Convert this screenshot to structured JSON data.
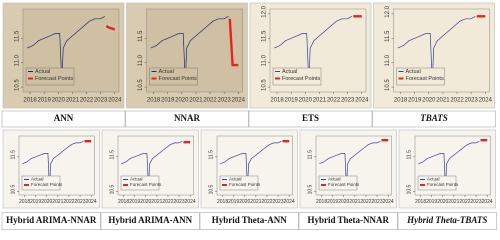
{
  "chart_data": [
    {
      "type": "line",
      "title": "ANN",
      "background": "#d9cbb0",
      "plot_background": "#cfc0a3",
      "title_italic": false,
      "xlim": [
        2017.5,
        2024.3
      ],
      "xticks": [
        2018,
        2019,
        2020,
        2021,
        2022,
        2023,
        2024
      ],
      "ylim": [
        10.4,
        12.1
      ],
      "yticks": [
        10.5,
        {
          "value": 11,
          "label": "11.0"
        },
        11.5
      ],
      "series": [
        {
          "name": "Actual",
          "color": "#1f2a78",
          "x": [
            2017.8,
            2018.2,
            2018.6,
            2019,
            2019.4,
            2019.8,
            2020.1,
            2020.25,
            2020.35,
            2020.6,
            2021,
            2021.4,
            2021.8,
            2022.2,
            2022.6,
            2023,
            2023.3
          ],
          "values": [
            11.3,
            11.35,
            11.45,
            11.5,
            11.55,
            11.6,
            11.6,
            10.6,
            11.3,
            11.45,
            11.55,
            11.65,
            11.75,
            11.85,
            11.9,
            11.9,
            11.95
          ]
        },
        {
          "name": "Forecast Points",
          "color": "#e8231e",
          "x": [
            2023.4,
            2023.6,
            2023.8,
            2024
          ],
          "values": [
            11.75,
            11.72,
            11.7,
            11.68
          ]
        }
      ]
    },
    {
      "type": "line",
      "title": "NNAR",
      "background": "#d9cbb0",
      "plot_background": "#cfc0a3",
      "title_italic": false,
      "xlim": [
        2017.5,
        2024.3
      ],
      "xticks": [
        2018,
        2019,
        2020,
        2021,
        2022,
        2023,
        2024
      ],
      "ylim": [
        10.4,
        12.1
      ],
      "yticks": [
        10.5,
        {
          "value": 11,
          "label": "11.0"
        },
        11.5
      ],
      "series": [
        {
          "name": "Actual",
          "color": "#1f2a78",
          "x": [
            2017.8,
            2018.2,
            2018.6,
            2019,
            2019.4,
            2019.8,
            2020.1,
            2020.25,
            2020.35,
            2020.6,
            2021,
            2021.4,
            2021.8,
            2022.2,
            2022.6,
            2023,
            2023.3
          ],
          "values": [
            11.3,
            11.35,
            11.45,
            11.5,
            11.55,
            11.6,
            11.6,
            10.6,
            11.3,
            11.45,
            11.55,
            11.65,
            11.75,
            11.85,
            11.9,
            11.9,
            11.95
          ]
        },
        {
          "name": "Forecast Points",
          "color": "#e8231e",
          "x": [
            2023.4,
            2023.6,
            2023.8,
            2024
          ],
          "values": [
            11.9,
            10.95,
            10.95,
            10.95
          ]
        }
      ]
    },
    {
      "type": "line",
      "title": "ETS",
      "background": "#f2ead8",
      "plot_background": "#f2ead8",
      "title_italic": false,
      "xlim": [
        2017.5,
        2024.3
      ],
      "xticks": [
        2018,
        2019,
        2020,
        2021,
        2022,
        2023,
        2024
      ],
      "ylim": [
        10.4,
        12.1
      ],
      "yticks": [
        10.5,
        {
          "value": 11,
          "label": "11.0"
        },
        11.5,
        {
          "value": 12,
          "label": "12.0"
        }
      ],
      "series": [
        {
          "name": "Actual",
          "color": "#3a3f9a",
          "x": [
            2017.8,
            2018.2,
            2018.6,
            2019,
            2019.4,
            2019.8,
            2020.1,
            2020.25,
            2020.35,
            2020.6,
            2021,
            2021.4,
            2021.8,
            2022.2,
            2022.6,
            2023,
            2023.3
          ],
          "values": [
            11.3,
            11.35,
            11.45,
            11.5,
            11.55,
            11.6,
            11.6,
            10.6,
            11.3,
            11.45,
            11.55,
            11.65,
            11.75,
            11.85,
            11.9,
            11.9,
            11.95
          ]
        },
        {
          "name": "Forecast Points",
          "color": "#e8231e",
          "x": [
            2023.4,
            2023.6,
            2023.8,
            2024
          ],
          "values": [
            11.95,
            11.95,
            11.95,
            11.95
          ]
        }
      ]
    },
    {
      "type": "line",
      "title": "TBATS",
      "background": "#f2ead8",
      "plot_background": "#f2ead8",
      "title_italic": true,
      "xlim": [
        2017.5,
        2024.3
      ],
      "xticks": [
        2018,
        2019,
        2020,
        2021,
        2022,
        2023,
        2024
      ],
      "ylim": [
        10.4,
        12.1
      ],
      "yticks": [
        10.5,
        {
          "value": 11,
          "label": "11.0"
        },
        11.5,
        {
          "value": 12,
          "label": "12.0"
        }
      ],
      "series": [
        {
          "name": "Actual",
          "color": "#3a3f9a",
          "x": [
            2017.8,
            2018.2,
            2018.6,
            2019,
            2019.4,
            2019.8,
            2020.1,
            2020.25,
            2020.35,
            2020.6,
            2021,
            2021.4,
            2021.8,
            2022.2,
            2022.6,
            2023,
            2023.3
          ],
          "values": [
            11.3,
            11.35,
            11.45,
            11.5,
            11.55,
            11.6,
            11.6,
            10.6,
            11.3,
            11.45,
            11.55,
            11.65,
            11.75,
            11.85,
            11.9,
            11.9,
            11.95
          ]
        },
        {
          "name": "Forecast Points",
          "color": "#e8231e",
          "x": [
            2023.4,
            2023.6,
            2023.8,
            2024
          ],
          "values": [
            11.95,
            11.95,
            11.95,
            11.95
          ]
        }
      ]
    },
    {
      "type": "line",
      "title": "Hybrid ARIMA-NNAR",
      "background": "#f7f4ee",
      "plot_background": "#f7f4ee",
      "title_italic": false,
      "xlim": [
        2017.5,
        2024.3
      ],
      "xticks": [
        2018,
        2019,
        2020,
        2021,
        2022,
        2023,
        2024
      ],
      "ylim": [
        10.4,
        12.1
      ],
      "yticks": [
        10.5,
        11.5
      ],
      "series": [
        {
          "name": "Actual",
          "color": "#3a3f9a",
          "x": [
            2017.8,
            2018.2,
            2018.6,
            2019,
            2019.4,
            2019.8,
            2020.1,
            2020.25,
            2020.35,
            2020.6,
            2021,
            2021.4,
            2021.8,
            2022.2,
            2022.6,
            2023,
            2023.3
          ],
          "values": [
            11.3,
            11.35,
            11.45,
            11.5,
            11.55,
            11.6,
            11.6,
            10.6,
            11.3,
            11.45,
            11.55,
            11.65,
            11.75,
            11.85,
            11.9,
            11.9,
            11.95
          ]
        },
        {
          "name": "Forecast Points",
          "color": "#e8231e",
          "x": [
            2023.4,
            2023.6,
            2023.8,
            2024
          ],
          "values": [
            11.95,
            11.95,
            11.95,
            11.95
          ]
        }
      ]
    },
    {
      "type": "line",
      "title": "Hybrid ARIMA-ANN",
      "background": "#f7f4ee",
      "plot_background": "#f7f4ee",
      "title_italic": false,
      "xlim": [
        2017.5,
        2024.3
      ],
      "xticks": [
        2018,
        2019,
        2020,
        2021,
        2022,
        2023,
        2024
      ],
      "ylim": [
        10.4,
        12.1
      ],
      "yticks": [
        10.5,
        11.5
      ],
      "series": [
        {
          "name": "Actual",
          "color": "#3a3f9a",
          "x": [
            2017.8,
            2018.2,
            2018.6,
            2019,
            2019.4,
            2019.8,
            2020.1,
            2020.25,
            2020.35,
            2020.6,
            2021,
            2021.4,
            2021.8,
            2022.2,
            2022.6,
            2023,
            2023.3
          ],
          "values": [
            11.3,
            11.35,
            11.45,
            11.5,
            11.55,
            11.6,
            11.6,
            10.6,
            11.3,
            11.45,
            11.55,
            11.65,
            11.75,
            11.85,
            11.9,
            11.9,
            11.95
          ]
        },
        {
          "name": "Forecast Points",
          "color": "#e8231e",
          "x": [
            2023.4,
            2023.6,
            2023.8,
            2024
          ],
          "values": [
            11.92,
            11.92,
            11.92,
            11.92
          ]
        }
      ]
    },
    {
      "type": "line",
      "title": "Hybrid Theta-ANN",
      "background": "#f7f4ee",
      "plot_background": "#f7f4ee",
      "title_italic": false,
      "xlim": [
        2017.5,
        2024.3
      ],
      "xticks": [
        2018,
        2019,
        2020,
        2021,
        2022,
        2023,
        2024
      ],
      "ylim": [
        10.4,
        12.1
      ],
      "yticks": [
        10.5,
        11.5
      ],
      "series": [
        {
          "name": "Actual",
          "color": "#3a3f9a",
          "x": [
            2017.8,
            2018.2,
            2018.6,
            2019,
            2019.4,
            2019.8,
            2020.1,
            2020.25,
            2020.35,
            2020.6,
            2021,
            2021.4,
            2021.8,
            2022.2,
            2022.6,
            2023,
            2023.3
          ],
          "values": [
            11.3,
            11.35,
            11.45,
            11.5,
            11.55,
            11.6,
            11.6,
            10.6,
            11.3,
            11.45,
            11.55,
            11.65,
            11.75,
            11.85,
            11.9,
            11.9,
            11.95
          ]
        },
        {
          "name": "Forecast Points",
          "color": "#e8231e",
          "x": [
            2023.4,
            2023.6,
            2023.8,
            2024
          ],
          "values": [
            11.95,
            11.95,
            11.95,
            11.95
          ]
        }
      ]
    },
    {
      "type": "line",
      "title": "Hybrid Theta-NNAR",
      "background": "#f7f4ee",
      "plot_background": "#f7f4ee",
      "title_italic": false,
      "xlim": [
        2017.5,
        2024.3
      ],
      "xticks": [
        2018,
        2019,
        2020,
        2021,
        2022,
        2023,
        2024
      ],
      "ylim": [
        10.4,
        12.1
      ],
      "yticks": [
        10.5,
        11.5
      ],
      "series": [
        {
          "name": "Actual",
          "color": "#3a3f9a",
          "x": [
            2017.8,
            2018.2,
            2018.6,
            2019,
            2019.4,
            2019.8,
            2020.1,
            2020.25,
            2020.35,
            2020.6,
            2021,
            2021.4,
            2021.8,
            2022.2,
            2022.6,
            2023,
            2023.3
          ],
          "values": [
            11.3,
            11.35,
            11.45,
            11.5,
            11.55,
            11.6,
            11.6,
            10.6,
            11.3,
            11.45,
            11.55,
            11.65,
            11.75,
            11.85,
            11.9,
            11.9,
            11.95
          ]
        },
        {
          "name": "Forecast Points",
          "color": "#e8231e",
          "x": [
            2023.4,
            2023.6,
            2023.8,
            2024
          ],
          "values": [
            11.98,
            11.98,
            11.98,
            11.98
          ]
        }
      ]
    },
    {
      "type": "line",
      "title": "Hybrid Theta-TBATS",
      "background": "#f7f4ee",
      "plot_background": "#f7f4ee",
      "title_italic": true,
      "xlim": [
        2017.5,
        2024.3
      ],
      "xticks": [
        2018,
        2019,
        2020,
        2021,
        2022,
        2023,
        2024
      ],
      "ylim": [
        10.4,
        12.1
      ],
      "yticks": [
        10.5,
        11.5
      ],
      "series": [
        {
          "name": "Actual",
          "color": "#3a3f9a",
          "x": [
            2017.8,
            2018.2,
            2018.6,
            2019,
            2019.4,
            2019.8,
            2020.1,
            2020.25,
            2020.35,
            2020.6,
            2021,
            2021.4,
            2021.8,
            2022.2,
            2022.6,
            2023,
            2023.3
          ],
          "values": [
            11.3,
            11.35,
            11.45,
            11.5,
            11.55,
            11.6,
            11.6,
            10.6,
            11.3,
            11.45,
            11.55,
            11.65,
            11.75,
            11.85,
            11.9,
            11.9,
            11.95
          ]
        },
        {
          "name": "Forecast Points",
          "color": "#e8231e",
          "x": [
            2023.4,
            2023.6,
            2023.8,
            2024
          ],
          "values": [
            11.98,
            11.98,
            11.98,
            11.98
          ]
        }
      ]
    }
  ]
}
